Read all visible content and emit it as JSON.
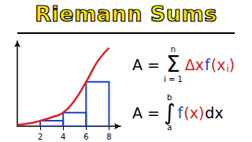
{
  "title": "Riemann Sums",
  "formulas": [
    {
      "parts": [
        {
          "text": "A ="
        },
        {
          "text": "Σ",
          "above": "n",
          "below": "i = 1"
        },
        {
          "text": "Δx",
          "color": "#d62020"
        },
        {
          "text": "f",
          "color": "#1f3fd0"
        },
        {
          "text": "(x",
          "color": "#d62020"
        },
        {
          "text": "i",
          "color": "#d62020",
          "sub": true
        },
        {
          "text": ")",
          "color": "#d62020"
        }
      ]
    },
    {
      "parts": [
        {
          "text": "A ="
        },
        {
          "text": "∫",
          "above": "b",
          "below": "a"
        },
        {
          "text": "f",
          "color": "#1f3fd0"
        },
        {
          "text": "(x)",
          "color": "#d62020"
        },
        {
          "text": "dx"
        }
      ]
    }
  ],
  "chart_data": {
    "type": "line",
    "x": [
      0,
      1,
      2,
      3,
      4,
      5,
      6,
      7,
      8
    ],
    "values": [
      0.2,
      0.4,
      0.8,
      1.3,
      2,
      3.8,
      6.5,
      9.5,
      11.5
    ],
    "color": "#e02020",
    "rectangles": {
      "bins": [
        2,
        4,
        6,
        8
      ],
      "values": [
        0.8,
        2,
        6.5
      ],
      "color": "#1f3fd0"
    },
    "xlim": [
      0,
      9
    ],
    "xticks": [
      2,
      4,
      6,
      8
    ],
    "ylim": [
      0,
      12.5
    ],
    "grid": false,
    "tick_labels": "x"
  }
}
